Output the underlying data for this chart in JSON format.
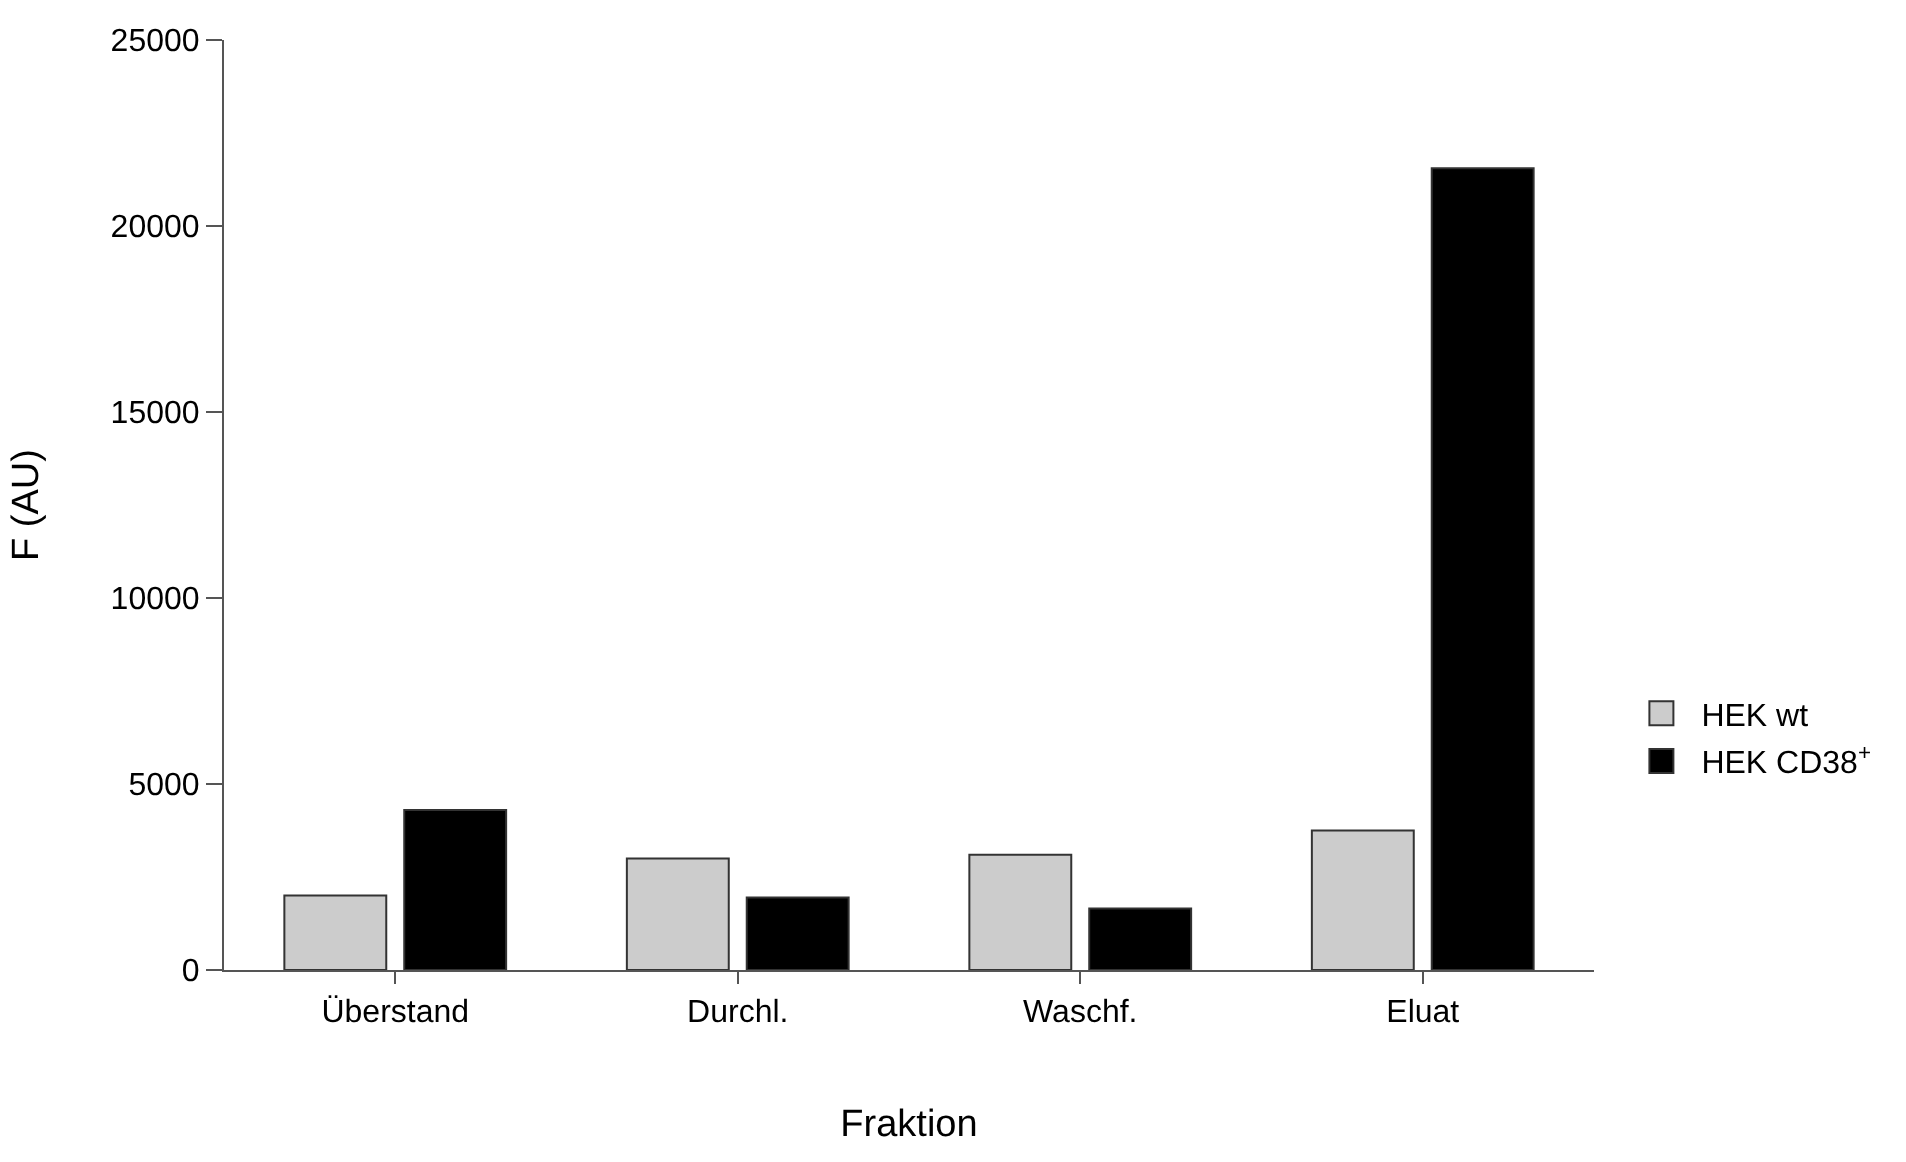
{
  "chart_data": {
    "type": "bar",
    "xlabel": "Fraktion",
    "ylabel": "F (AU)",
    "categories": [
      "Überstand",
      "Durchl.",
      "Waschf.",
      "Eluat"
    ],
    "series": [
      {
        "name": "HEK wt",
        "color": "#cccccc",
        "values": [
          2000,
          3000,
          3100,
          3750
        ]
      },
      {
        "name": "HEK CD38$^{+}$",
        "color": "#000000",
        "values": [
          4300,
          1950,
          1650,
          21550
        ]
      }
    ],
    "ylim": [
      0,
      25000
    ],
    "yticks": [
      0,
      5000,
      10000,
      15000,
      20000,
      25000
    ],
    "legend": "right"
  }
}
